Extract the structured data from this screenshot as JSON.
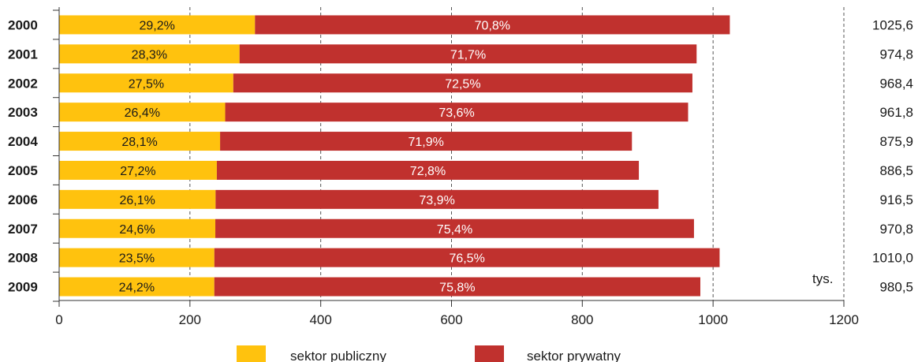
{
  "chart_data": {
    "type": "bar",
    "orientation": "horizontal",
    "stacked": true,
    "categories": [
      "2000",
      "2001",
      "2002",
      "2003",
      "2004",
      "2005",
      "2006",
      "2007",
      "2008",
      "2009"
    ],
    "totals": [
      1025.6,
      974.8,
      968.4,
      961.8,
      875.9,
      886.5,
      916.5,
      970.8,
      1010.0,
      980.5
    ],
    "total_labels": [
      "1025,6",
      "974,8",
      "968,4",
      "961,8",
      "875,9",
      "886,5",
      "916,5",
      "970,8",
      "1010,0",
      "980,5"
    ],
    "series": [
      {
        "name": "sektor publiczny",
        "color": "#ffc20e",
        "percent": [
          29.2,
          28.3,
          27.5,
          26.4,
          28.1,
          27.2,
          26.1,
          24.6,
          23.5,
          24.2
        ],
        "labels": [
          "29,2%",
          "28,3%",
          "27,5%",
          "26,4%",
          "28,1%",
          "27,2%",
          "26,1%",
          "24,6%",
          "23,5%",
          "24,2%"
        ]
      },
      {
        "name": "sektor prywatny",
        "color": "#c0312e",
        "percent": [
          70.8,
          71.7,
          72.5,
          73.6,
          71.9,
          72.8,
          73.9,
          75.4,
          76.5,
          75.8
        ],
        "labels": [
          "70,8%",
          "71,7%",
          "72,5%",
          "73,6%",
          "71,9%",
          "72,8%",
          "73,9%",
          "75,4%",
          "76,5%",
          "75,8%"
        ]
      }
    ],
    "xlim": [
      0,
      1200
    ],
    "xticks": [
      0,
      200,
      400,
      600,
      800,
      1000,
      1200
    ],
    "xtick_labels": [
      "0",
      "200",
      "400",
      "600",
      "800",
      "1000",
      "1200"
    ],
    "unit_label": "tys.",
    "grid": "dashed vertical",
    "legend_position": "bottom"
  }
}
